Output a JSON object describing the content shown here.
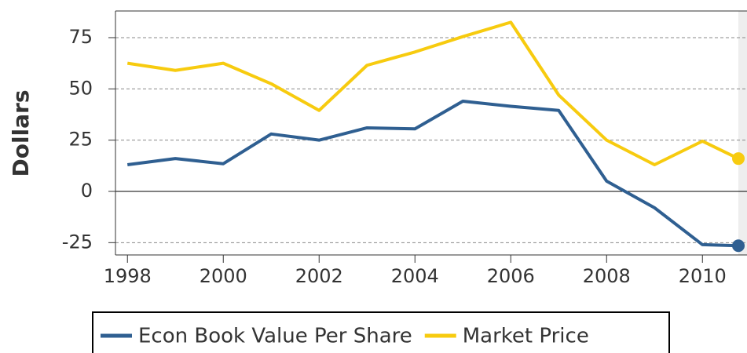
{
  "chart_data": {
    "type": "line",
    "y_label": "Dollars",
    "xlim": [
      1997.75,
      2010.93
    ],
    "xticks": [
      1998,
      2000,
      2002,
      2004,
      2006,
      2008,
      2010
    ],
    "ylim": [
      -31,
      88
    ],
    "yticks": [
      -25,
      0,
      25,
      50,
      75
    ],
    "grid": true,
    "legend": "bottom",
    "series": [
      {
        "name": "Econ Book Value Per Share",
        "color": "#2f5f91",
        "x": [
          1998,
          1999,
          2000,
          2001,
          2002,
          2003,
          2004,
          2005,
          2006,
          2007,
          2008,
          2009,
          2010,
          2010.75
        ],
        "values": [
          13,
          16,
          13.5,
          28,
          25,
          31,
          30.5,
          44,
          41.5,
          39.5,
          5,
          -8,
          -26,
          -26.5
        ]
      },
      {
        "name": "Market Price",
        "color": "#f7cb0f",
        "x": [
          1998,
          1999,
          2000,
          2001,
          2002,
          2003,
          2004,
          2005,
          2006,
          2007,
          2008,
          2009,
          2010,
          2010.75
        ],
        "values": [
          62.5,
          59,
          62.5,
          52.5,
          39.5,
          61.5,
          68,
          75.5,
          82.5,
          47,
          25,
          13,
          24.5,
          16
        ]
      }
    ]
  }
}
